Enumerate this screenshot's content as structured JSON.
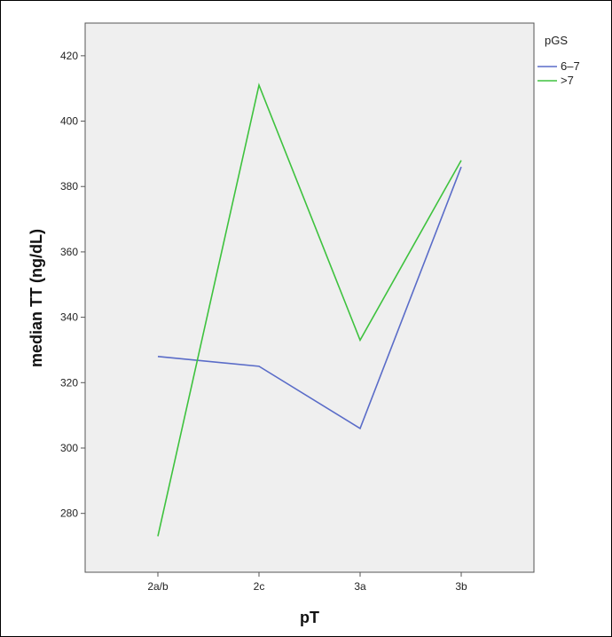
{
  "chart_data": {
    "type": "line",
    "xlabel": "pT",
    "ylabel": "median TT (ng/dL)",
    "categories": [
      "2a/b",
      "2c",
      "3a",
      "3b"
    ],
    "ylim": [
      262,
      430
    ],
    "yticks": [
      280,
      300,
      320,
      340,
      360,
      380,
      400,
      420
    ],
    "grid": false,
    "legend": {
      "title": "pGS",
      "placement": "right",
      "entries": [
        "6–7",
        ">7"
      ]
    },
    "series": [
      {
        "name": "6–7",
        "color": "#5a6cc8",
        "values": [
          328,
          325,
          306,
          386
        ]
      },
      {
        "name": ">7",
        "color": "#3ec23e",
        "values": [
          273,
          411,
          333,
          388
        ]
      }
    ],
    "plot_background": "#efefef"
  }
}
